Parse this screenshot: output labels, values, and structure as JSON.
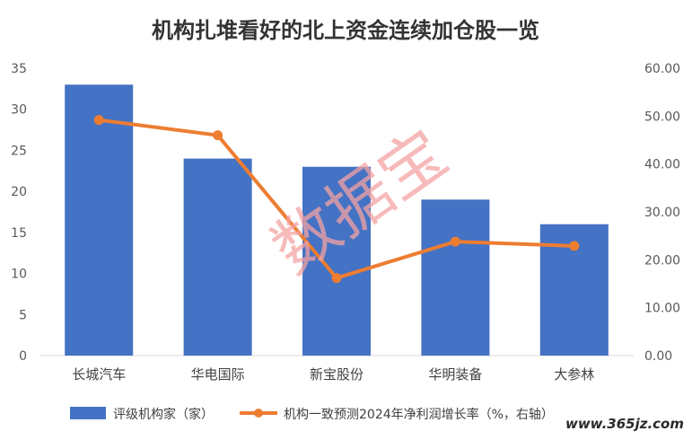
{
  "chart_data": {
    "type": "bar",
    "title": "机构扎堆看好的北上资金连续加仓股一览",
    "categories": [
      "长城汽车",
      "华电国际",
      "新宝股份",
      "华明装备",
      "大参林"
    ],
    "series": [
      {
        "name": "评级机构家（家）",
        "type": "bar",
        "axis": "left",
        "values": [
          33,
          24,
          23,
          19,
          16
        ],
        "color": "#4472C4"
      },
      {
        "name": "机构一致预测2024年净利润增长率（%，右轴）",
        "type": "line",
        "axis": "right",
        "values": [
          49.2,
          46.0,
          16.2,
          23.8,
          22.9
        ],
        "color": "#ED7D31"
      }
    ],
    "ylim_left": [
      0,
      35
    ],
    "yticks_left": [
      "0",
      "5",
      "10",
      "15",
      "20",
      "25",
      "30",
      "35"
    ],
    "ylim_right": [
      0,
      60
    ],
    "yticks_right": [
      "0.00",
      "10.00",
      "20.00",
      "30.00",
      "40.00",
      "50.00",
      "60.00"
    ],
    "grid": false,
    "legend_position": "bottom"
  },
  "watermark": "数据宝",
  "footer_logo": "www.365jz.com"
}
